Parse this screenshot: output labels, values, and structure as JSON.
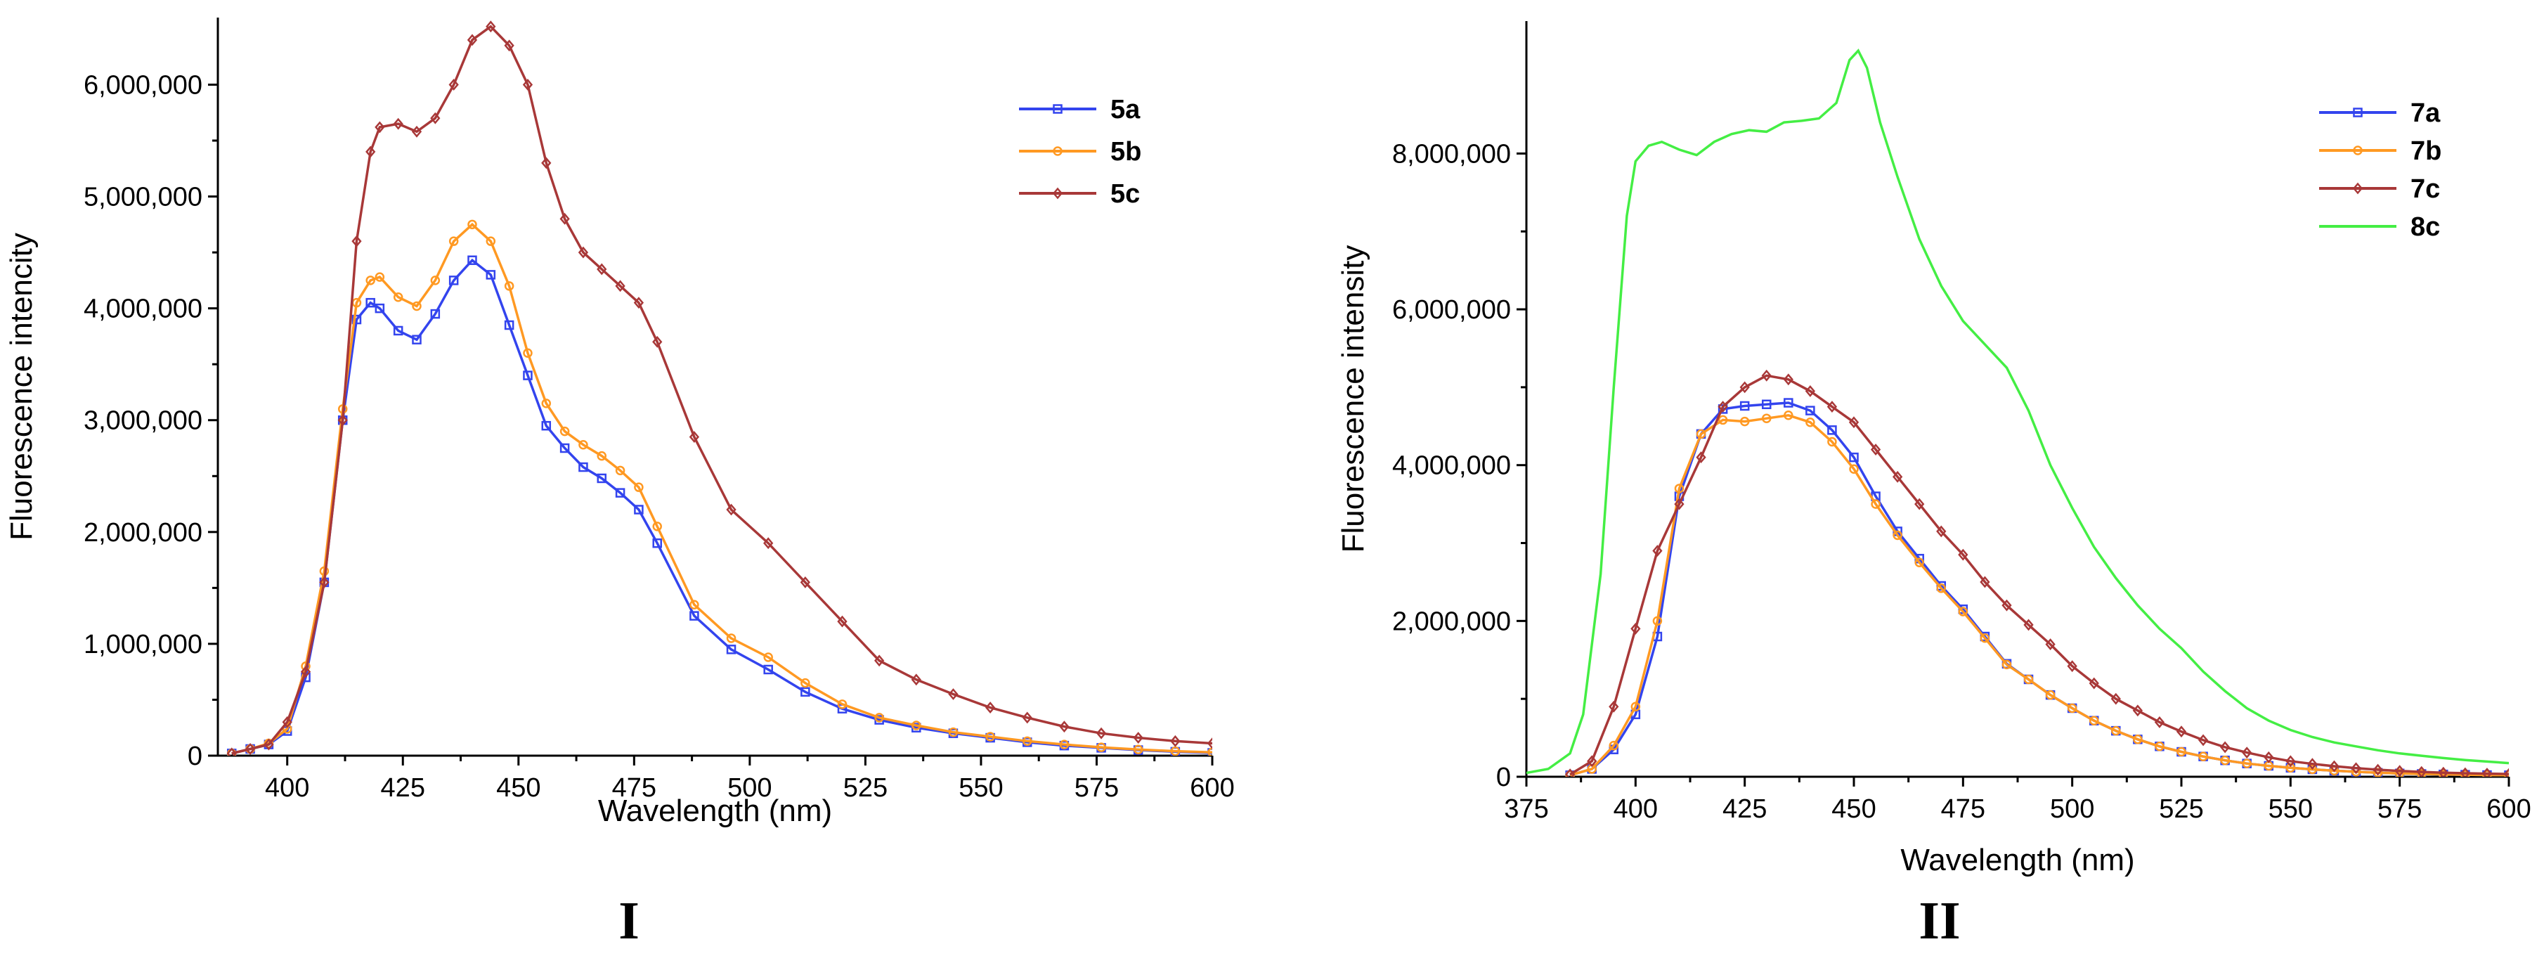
{
  "chart_data": [
    {
      "type": "line",
      "panel_label": "I",
      "xlabel": "Wavelength (nm)",
      "ylabel": "Fluorescence intencity",
      "xlim": [
        385,
        600
      ],
      "ylim": [
        0,
        6600000
      ],
      "xticks": [
        400,
        425,
        450,
        475,
        500,
        525,
        550,
        575,
        600
      ],
      "xtick_labels": [
        "400",
        "425",
        "450",
        "475",
        "500",
        "525",
        "550",
        "575",
        "600"
      ],
      "yticks": [
        0,
        1000000,
        2000000,
        3000000,
        4000000,
        5000000,
        6000000
      ],
      "ytick_labels": [
        "0",
        "1,000,000",
        "2,000,000",
        "3,000,000",
        "4,000,000",
        "5,000,000",
        "6,000,000"
      ],
      "legend_position": "top-right",
      "series": [
        {
          "name": "5a",
          "color": "#3344ee",
          "marker": "square",
          "x": [
            388,
            392,
            396,
            400,
            404,
            408,
            412,
            415,
            418,
            420,
            424,
            428,
            432,
            436,
            440,
            444,
            448,
            452,
            456,
            460,
            464,
            468,
            472,
            476,
            480,
            488,
            496,
            504,
            512,
            520,
            528,
            536,
            544,
            552,
            560,
            568,
            576,
            584,
            592,
            600
          ],
          "values": [
            20000,
            60000,
            100000,
            220000,
            700000,
            1550000,
            3000000,
            3900000,
            4050000,
            4000000,
            3800000,
            3720000,
            3950000,
            4250000,
            4430000,
            4300000,
            3850000,
            3400000,
            2950000,
            2750000,
            2580000,
            2480000,
            2350000,
            2200000,
            1900000,
            1250000,
            950000,
            770000,
            570000,
            420000,
            320000,
            250000,
            200000,
            160000,
            120000,
            90000,
            70000,
            50000,
            35000,
            25000
          ]
        },
        {
          "name": "5b",
          "color": "#ff9922",
          "marker": "circle",
          "x": [
            388,
            392,
            396,
            400,
            404,
            408,
            412,
            415,
            418,
            420,
            424,
            428,
            432,
            436,
            440,
            444,
            448,
            452,
            456,
            460,
            464,
            468,
            472,
            476,
            480,
            488,
            496,
            504,
            512,
            520,
            528,
            536,
            544,
            552,
            560,
            568,
            576,
            584,
            592,
            600
          ],
          "values": [
            20000,
            60000,
            110000,
            240000,
            800000,
            1650000,
            3100000,
            4050000,
            4250000,
            4280000,
            4100000,
            4020000,
            4250000,
            4600000,
            4750000,
            4600000,
            4200000,
            3600000,
            3150000,
            2900000,
            2780000,
            2680000,
            2550000,
            2400000,
            2050000,
            1350000,
            1050000,
            880000,
            650000,
            460000,
            340000,
            270000,
            210000,
            170000,
            130000,
            100000,
            75000,
            55000,
            40000,
            30000
          ]
        },
        {
          "name": "5c",
          "color": "#a83838",
          "marker": "diamond",
          "x": [
            388,
            392,
            396,
            400,
            404,
            408,
            412,
            415,
            418,
            420,
            424,
            428,
            432,
            436,
            440,
            444,
            448,
            452,
            456,
            460,
            464,
            468,
            472,
            476,
            480,
            488,
            496,
            504,
            512,
            520,
            528,
            536,
            544,
            552,
            560,
            568,
            576,
            584,
            592,
            600
          ],
          "values": [
            20000,
            60000,
            100000,
            300000,
            750000,
            1550000,
            3000000,
            4600000,
            5400000,
            5620000,
            5650000,
            5580000,
            5700000,
            6000000,
            6400000,
            6520000,
            6350000,
            6000000,
            5300000,
            4800000,
            4500000,
            4350000,
            4200000,
            4050000,
            3700000,
            2850000,
            2200000,
            1900000,
            1550000,
            1200000,
            850000,
            680000,
            550000,
            430000,
            340000,
            260000,
            200000,
            160000,
            130000,
            110000
          ]
        }
      ]
    },
    {
      "type": "line",
      "panel_label": "II",
      "xlabel": "Wavelength (nm)",
      "ylabel": "Fluorescence intensity",
      "xlim": [
        375,
        600
      ],
      "ylim": [
        0,
        9700000
      ],
      "xticks": [
        375,
        400,
        425,
        450,
        475,
        500,
        525,
        550,
        575,
        600
      ],
      "xtick_labels": [
        "375",
        "400",
        "425",
        "450",
        "475",
        "500",
        "525",
        "550",
        "575",
        "600"
      ],
      "yticks": [
        0,
        2000000,
        4000000,
        6000000,
        8000000
      ],
      "ytick_labels": [
        "0",
        "2,000,000",
        "4,000,000",
        "6,000,000",
        "8,000,000"
      ],
      "legend_position": "top-right",
      "series": [
        {
          "name": "7a",
          "color": "#3344ee",
          "marker": "square",
          "x": [
            385,
            390,
            395,
            400,
            405,
            410,
            415,
            420,
            425,
            430,
            435,
            440,
            445,
            450,
            455,
            460,
            465,
            470,
            475,
            480,
            485,
            490,
            495,
            500,
            505,
            510,
            515,
            520,
            525,
            530,
            535,
            540,
            545,
            550,
            555,
            560,
            565,
            570,
            575,
            580,
            585,
            590,
            595,
            600
          ],
          "values": [
            20000,
            100000,
            350000,
            800000,
            1800000,
            3600000,
            4400000,
            4720000,
            4760000,
            4780000,
            4800000,
            4700000,
            4450000,
            4100000,
            3600000,
            3150000,
            2800000,
            2450000,
            2150000,
            1800000,
            1450000,
            1250000,
            1050000,
            880000,
            720000,
            590000,
            480000,
            390000,
            320000,
            260000,
            210000,
            170000,
            140000,
            115000,
            95000,
            78000,
            64000,
            52000,
            43000,
            36000,
            30000,
            26000,
            22000,
            20000
          ]
        },
        {
          "name": "7b",
          "color": "#ff9922",
          "marker": "circle",
          "x": [
            385,
            390,
            395,
            400,
            405,
            410,
            415,
            420,
            425,
            430,
            435,
            440,
            445,
            450,
            455,
            460,
            465,
            470,
            475,
            480,
            485,
            490,
            495,
            500,
            505,
            510,
            515,
            520,
            525,
            530,
            535,
            540,
            545,
            550,
            555,
            560,
            565,
            570,
            575,
            580,
            585,
            590,
            595,
            600
          ],
          "values": [
            20000,
            100000,
            400000,
            900000,
            2000000,
            3700000,
            4400000,
            4580000,
            4560000,
            4600000,
            4640000,
            4550000,
            4300000,
            3950000,
            3500000,
            3100000,
            2750000,
            2420000,
            2120000,
            1780000,
            1440000,
            1250000,
            1050000,
            880000,
            720000,
            590000,
            480000,
            390000,
            320000,
            260000,
            210000,
            170000,
            140000,
            115000,
            95000,
            78000,
            64000,
            52000,
            43000,
            36000,
            30000,
            26000,
            22000,
            20000
          ]
        },
        {
          "name": "7c",
          "color": "#a83838",
          "marker": "diamond",
          "x": [
            385,
            390,
            395,
            400,
            405,
            410,
            415,
            420,
            425,
            430,
            435,
            440,
            445,
            450,
            455,
            460,
            465,
            470,
            475,
            480,
            485,
            490,
            495,
            500,
            505,
            510,
            515,
            520,
            525,
            530,
            535,
            540,
            545,
            550,
            555,
            560,
            565,
            570,
            575,
            580,
            585,
            590,
            595,
            600
          ],
          "values": [
            30000,
            200000,
            900000,
            1900000,
            2900000,
            3500000,
            4100000,
            4750000,
            5000000,
            5150000,
            5100000,
            4950000,
            4750000,
            4550000,
            4200000,
            3850000,
            3500000,
            3150000,
            2850000,
            2500000,
            2200000,
            1950000,
            1700000,
            1420000,
            1200000,
            1000000,
            850000,
            700000,
            580000,
            470000,
            380000,
            310000,
            250000,
            200000,
            165000,
            135000,
            110000,
            90000,
            75000,
            62000,
            52000,
            45000,
            40000,
            35000
          ]
        },
        {
          "name": "8c",
          "color": "#44ee44",
          "marker": "none",
          "x": [
            375,
            380,
            385,
            388,
            392,
            395,
            398,
            400,
            403,
            406,
            410,
            414,
            418,
            422,
            426,
            430,
            434,
            438,
            442,
            446,
            449,
            451,
            453,
            456,
            460,
            465,
            470,
            475,
            480,
            485,
            490,
            495,
            500,
            505,
            510,
            515,
            520,
            525,
            530,
            535,
            540,
            545,
            550,
            555,
            560,
            565,
            570,
            575,
            580,
            585,
            590,
            595,
            600
          ],
          "values": [
            50000,
            100000,
            300000,
            800000,
            2600000,
            5000000,
            7200000,
            7900000,
            8100000,
            8150000,
            8050000,
            7980000,
            8150000,
            8250000,
            8300000,
            8280000,
            8400000,
            8420000,
            8450000,
            8650000,
            9200000,
            9320000,
            9100000,
            8400000,
            7700000,
            6900000,
            6300000,
            5850000,
            5550000,
            5250000,
            4700000,
            4000000,
            3450000,
            2950000,
            2550000,
            2200000,
            1900000,
            1650000,
            1350000,
            1100000,
            880000,
            720000,
            600000,
            510000,
            440000,
            390000,
            340000,
            300000,
            270000,
            240000,
            215000,
            195000,
            175000
          ]
        }
      ]
    }
  ]
}
